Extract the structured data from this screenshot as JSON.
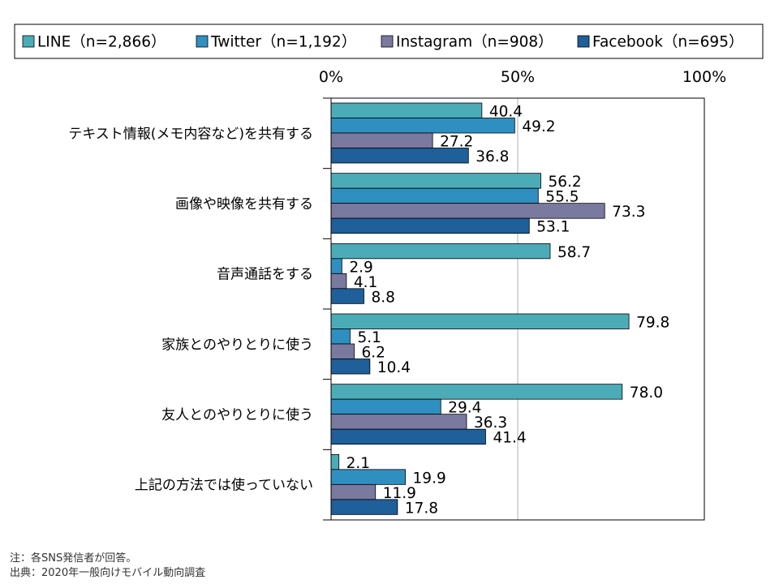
{
  "chart_data": {
    "type": "bar",
    "orientation": "horizontal",
    "categories": [
      "テキスト情報(メモ内容など)を共有する",
      "画像や映像を共有する",
      "音声通話をする",
      "家族とのやりとりに使う",
      "友人とのやりとりに使う",
      "上記の方法では使っていない"
    ],
    "series": [
      {
        "name": "LINE（n=2,866）",
        "color": "#4bacb8",
        "values": [
          40.4,
          56.2,
          58.7,
          79.8,
          78.0,
          2.1
        ]
      },
      {
        "name": "Twitter（n=1,192）",
        "color": "#2f8fc0",
        "values": [
          49.2,
          55.5,
          2.9,
          5.1,
          29.4,
          19.9
        ]
      },
      {
        "name": "Instagram（n=908）",
        "color": "#7a7aa0",
        "values": [
          27.2,
          73.3,
          4.1,
          6.2,
          36.3,
          11.9
        ]
      },
      {
        "name": "Facebook（n=695）",
        "color": "#1f5f9a",
        "values": [
          36.8,
          53.1,
          8.8,
          10.4,
          41.4,
          17.8
        ]
      }
    ],
    "value_labels": [
      [
        "40.4",
        "56.2",
        "58.7",
        "79.8",
        "78.0",
        "2.1"
      ],
      [
        "49.2",
        "55.5",
        "2.9",
        "5.1",
        "29.4",
        "19.9"
      ],
      [
        "27.2",
        "73.3",
        "4.1",
        "6.2",
        "36.3",
        "11.9"
      ],
      [
        "36.8",
        "53.1",
        "8.8",
        "10.4",
        "41.4",
        "17.8"
      ]
    ],
    "xlim": [
      0,
      100
    ],
    "xticks": [
      0,
      50,
      100
    ],
    "xtick_labels": [
      "0%",
      "50%",
      "100%"
    ],
    "grid": "vertical at 50%",
    "legend_position": "top",
    "title": "",
    "xlabel": "",
    "ylabel": ""
  },
  "footnotes": {
    "note": "注：各SNS発信者が回答。",
    "source": "出典：2020年一般向けモバイル動向調査"
  }
}
